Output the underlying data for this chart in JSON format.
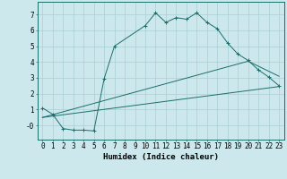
{
  "xlabel": "Humidex (Indice chaleur)",
  "background_color": "#cce8ec",
  "grid_color": "#aacdd4",
  "line_color": "#1a6e6a",
  "xlim": [
    -0.5,
    23.5
  ],
  "ylim": [
    -0.9,
    7.8
  ],
  "xticks": [
    0,
    1,
    2,
    3,
    4,
    5,
    6,
    7,
    8,
    9,
    10,
    11,
    12,
    13,
    14,
    15,
    16,
    17,
    18,
    19,
    20,
    21,
    22,
    23
  ],
  "yticks": [
    0,
    1,
    2,
    3,
    4,
    5,
    6,
    7
  ],
  "ytick_labels": [
    "-0",
    "1",
    "2",
    "3",
    "4",
    "5",
    "6",
    "7"
  ],
  "series1_x": [
    0,
    1,
    2,
    3,
    4,
    5,
    6,
    7,
    10,
    11,
    12,
    13,
    14,
    15,
    16,
    17,
    18,
    19,
    20,
    21,
    22,
    23
  ],
  "series1_y": [
    1.1,
    0.7,
    -0.2,
    -0.3,
    -0.3,
    -0.35,
    2.95,
    5.0,
    6.3,
    7.1,
    6.5,
    6.8,
    6.7,
    7.1,
    6.5,
    6.1,
    5.2,
    4.5,
    4.1,
    3.5,
    3.05,
    2.5
  ],
  "series2_x": [
    0,
    23
  ],
  "series2_y": [
    0.5,
    2.45
  ],
  "series3_x": [
    0,
    20,
    23
  ],
  "series3_y": [
    0.5,
    4.05,
    3.1
  ],
  "tick_font_size": 5.5,
  "xlabel_font_size": 6.5
}
